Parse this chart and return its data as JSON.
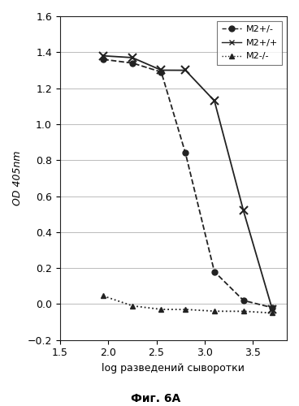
{
  "title": "",
  "xlabel": "log разведений сыворотки",
  "ylabel": "OD 405nm",
  "caption": "Фиг. 6A",
  "xlim": [
    1.5,
    3.85
  ],
  "ylim": [
    -0.2,
    1.6
  ],
  "xticks": [
    1.5,
    2.0,
    2.5,
    3.0,
    3.5
  ],
  "yticks": [
    -0.2,
    0.0,
    0.2,
    0.4,
    0.6,
    0.8,
    1.0,
    1.2,
    1.4,
    1.6
  ],
  "series": [
    {
      "label": "M2+/-",
      "x": [
        1.95,
        2.25,
        2.55,
        2.8,
        3.1,
        3.4,
        3.7
      ],
      "y": [
        1.36,
        1.34,
        1.29,
        0.84,
        0.18,
        0.02,
        -0.02
      ],
      "color": "#222222",
      "linestyle": "--",
      "marker": "o",
      "markersize": 5,
      "linewidth": 1.3,
      "zorder": 3
    },
    {
      "label": "M2+/+",
      "x": [
        1.95,
        2.25,
        2.55,
        2.8,
        3.1,
        3.4,
        3.7
      ],
      "y": [
        1.38,
        1.37,
        1.3,
        1.3,
        1.13,
        0.52,
        -0.03
      ],
      "color": "#222222",
      "linestyle": "-",
      "marker": "x",
      "markersize": 7,
      "linewidth": 1.3,
      "zorder": 3
    },
    {
      "label": "M2-/-",
      "x": [
        1.95,
        2.25,
        2.55,
        2.8,
        3.1,
        3.4,
        3.7
      ],
      "y": [
        0.045,
        -0.01,
        -0.03,
        -0.03,
        -0.04,
        -0.04,
        -0.05
      ],
      "color": "#222222",
      "linestyle": ":",
      "marker": "^",
      "markersize": 5,
      "linewidth": 1.3,
      "zorder": 3
    }
  ],
  "legend_labels": [
    "M2+/-",
    "M2+/+",
    "M2-/-"
  ],
  "legend_linestyles": [
    "--",
    "-",
    ":"
  ],
  "legend_markers": [
    "o",
    "x",
    "^"
  ],
  "background_color": "#ffffff",
  "grid_color": "#bbbbbb"
}
